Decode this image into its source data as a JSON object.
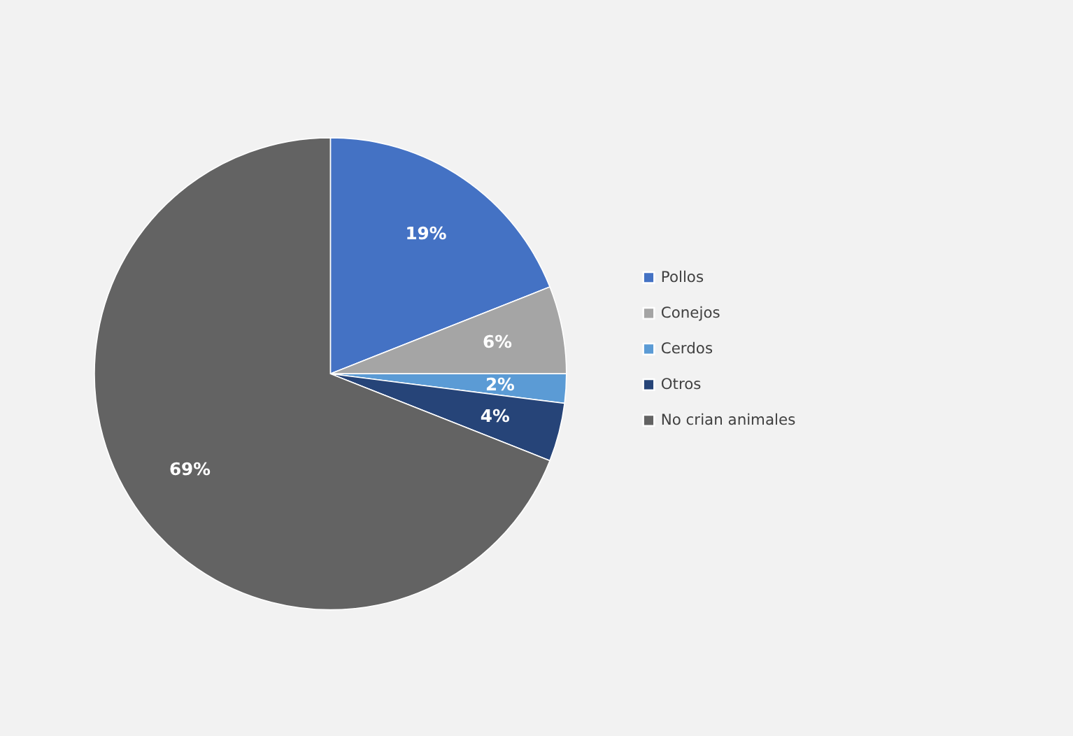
{
  "chart_data": {
    "type": "pie",
    "categories": [
      "Pollos",
      "Conejos",
      "Cerdos",
      "Otros",
      "No crian animales"
    ],
    "values": [
      19,
      6,
      2,
      4,
      69
    ],
    "colors": [
      "#4472c4",
      "#a5a5a5",
      "#5b9bd5",
      "#264478",
      "#636363"
    ],
    "value_labels": [
      "19%",
      "6%",
      "2%",
      "4%",
      "69%"
    ],
    "legend": "right"
  }
}
